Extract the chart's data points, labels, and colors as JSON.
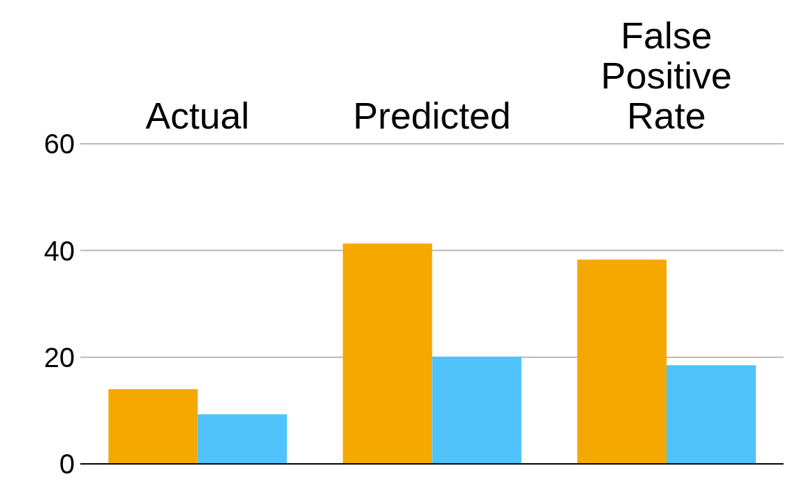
{
  "chart_data": {
    "type": "bar",
    "categories": [
      "Actual",
      "Predicted",
      "False Positive Rate"
    ],
    "series": [
      {
        "color": "#f5a800",
        "values": [
          14,
          41.3,
          38.3
        ]
      },
      {
        "color": "#4fc3fa",
        "values": [
          9.3,
          20.1,
          18.5
        ]
      }
    ],
    "ylim": [
      0,
      60
    ],
    "yticks": [
      0,
      20,
      40,
      60
    ],
    "grid": "y"
  }
}
